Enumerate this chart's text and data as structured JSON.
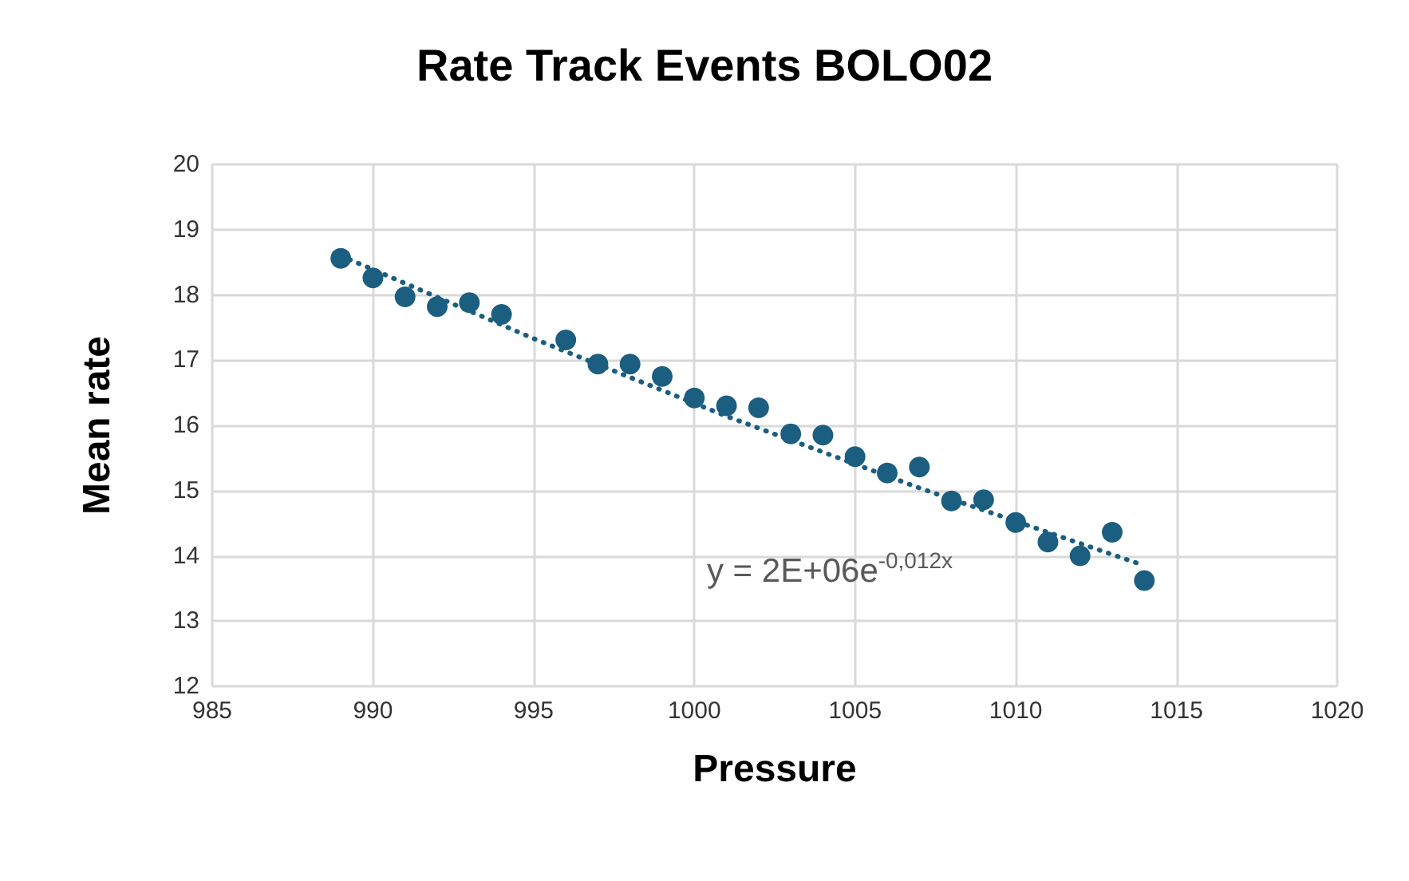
{
  "chart_data": {
    "type": "scatter",
    "title": "Rate Track Events BOLO02",
    "xlabel": "Pressure",
    "ylabel": "Mean rate",
    "xlim": [
      985,
      1020
    ],
    "xticks": [
      985,
      990,
      995,
      1000,
      1005,
      1010,
      1015,
      1020
    ],
    "ylim": [
      12,
      20
    ],
    "yticks": [
      12,
      13,
      14,
      15,
      16,
      17,
      18,
      19,
      20
    ],
    "grid": true,
    "marker": "circle",
    "series": [
      {
        "color": "#1b5e80",
        "x": [
          989,
          990,
          991,
          992,
          993,
          994,
          996,
          997,
          998,
          999,
          1000,
          1001,
          1002,
          1003,
          1004,
          1005,
          1006,
          1007,
          1008,
          1009,
          1010,
          1011,
          1012,
          1013,
          1014
        ],
        "values": [
          18.56,
          18.26,
          17.97,
          17.82,
          17.88,
          17.7,
          17.31,
          16.94,
          16.94,
          16.75,
          16.42,
          16.3,
          16.27,
          15.87,
          15.85,
          15.52,
          15.27,
          15.36,
          14.84,
          14.86,
          14.51,
          14.21,
          14.0,
          14.36,
          13.62
        ]
      },
      {
        "type": "line",
        "color": "#1b5e80",
        "line_style": "dotted",
        "marker": "none",
        "x": [
          989,
          995,
          1001,
          1007,
          1014
        ],
        "values": [
          18.6,
          17.33,
          16.14,
          15.04,
          13.85
        ]
      }
    ],
    "annotations": [
      "y = 2E+06e$^{-0,012x}$"
    ]
  }
}
